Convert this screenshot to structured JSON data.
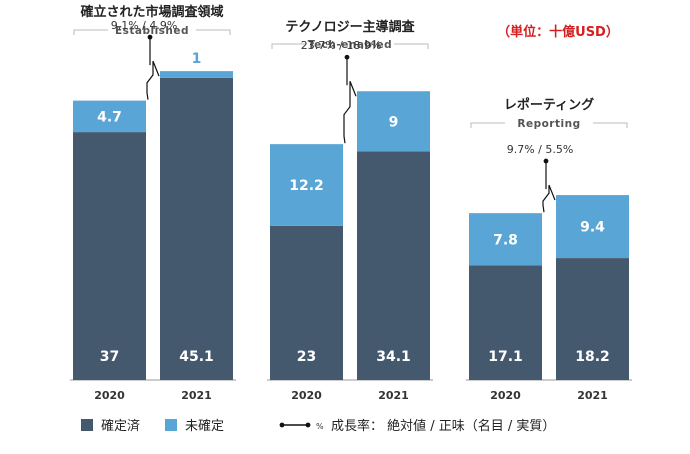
{
  "unit_note": "（単位：十億USD）",
  "colors": {
    "confirmed": "#45596e",
    "unconfirmed": "#58a5d6",
    "unit_note": "#d42020",
    "text": "#222222",
    "subtitle": "#555555",
    "axis": "#999999",
    "bracket": "#bbbbbb",
    "growth_line": "#111111"
  },
  "legend": {
    "confirmed": "確定済",
    "unconfirmed": "未確定",
    "growth_prefix": "%",
    "growth": "成長率： 絶対値 / 正味（名目 / 実質）"
  },
  "chart_data": [
    {
      "type": "bar",
      "stacked": true,
      "title": "確立された市場調査領域",
      "subtitle": "Established",
      "categories": [
        "2020",
        "2021"
      ],
      "series": [
        {
          "name": "確定済",
          "values": [
            37.0,
            45.1
          ]
        },
        {
          "name": "未確定",
          "values": [
            4.7,
            1.0
          ]
        }
      ],
      "growth_label": "9.1% / 4.9%"
    },
    {
      "type": "bar",
      "stacked": true,
      "title": "テクノロジー主導調査",
      "subtitle": "Tech-enabled",
      "categories": [
        "2020",
        "2021"
      ],
      "series": [
        {
          "name": "確定済",
          "values": [
            23.0,
            34.1
          ]
        },
        {
          "name": "未確定",
          "values": [
            12.2,
            9.0
          ]
        }
      ],
      "growth_label": "23.7% / 18.9%"
    },
    {
      "type": "bar",
      "stacked": true,
      "title": "レポーティング",
      "subtitle": "Reporting",
      "categories": [
        "2020",
        "2021"
      ],
      "series": [
        {
          "name": "確定済",
          "values": [
            17.1,
            18.2
          ]
        },
        {
          "name": "未確定",
          "values": [
            7.8,
            9.4
          ]
        }
      ],
      "growth_label": "9.7% / 5.5%"
    }
  ]
}
